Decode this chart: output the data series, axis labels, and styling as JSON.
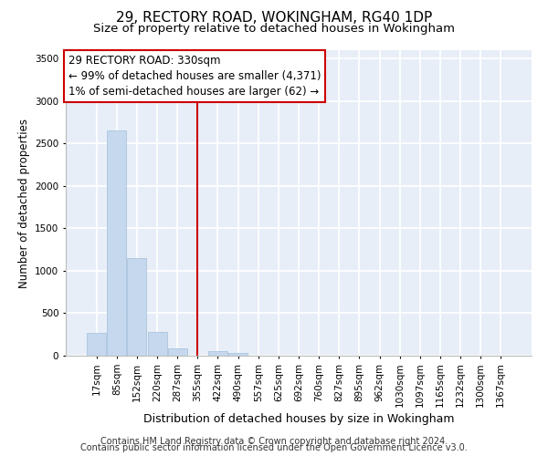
{
  "title1": "29, RECTORY ROAD, WOKINGHAM, RG40 1DP",
  "title2": "Size of property relative to detached houses in Wokingham",
  "xlabel": "Distribution of detached houses by size in Wokingham",
  "ylabel": "Number of detached properties",
  "bar_labels": [
    "17sqm",
    "85sqm",
    "152sqm",
    "220sqm",
    "287sqm",
    "355sqm",
    "422sqm",
    "490sqm",
    "557sqm",
    "625sqm",
    "692sqm",
    "760sqm",
    "827sqm",
    "895sqm",
    "962sqm",
    "1030sqm",
    "1097sqm",
    "1165sqm",
    "1232sqm",
    "1300sqm",
    "1367sqm"
  ],
  "bar_values": [
    270,
    2650,
    1150,
    280,
    90,
    0,
    55,
    35,
    0,
    0,
    0,
    0,
    0,
    0,
    0,
    0,
    0,
    0,
    0,
    0,
    0
  ],
  "bar_color": "#c5d8ed",
  "bar_edgecolor": "#a0bfda",
  "annotation_text": "29 RECTORY ROAD: 330sqm\n← 99% of detached houses are smaller (4,371)\n1% of semi-detached houses are larger (62) →",
  "vline_x_index": 5.0,
  "vline_color": "#cc0000",
  "annotation_box_edgecolor": "#cc0000",
  "ylim": [
    0,
    3600
  ],
  "yticks": [
    0,
    500,
    1000,
    1500,
    2000,
    2500,
    3000,
    3500
  ],
  "background_color": "#e8eef8",
  "grid_color": "#ffffff",
  "footer1": "Contains HM Land Registry data © Crown copyright and database right 2024.",
  "footer2": "Contains public sector information licensed under the Open Government Licence v3.0.",
  "title1_fontsize": 11,
  "title2_fontsize": 9.5,
  "xlabel_fontsize": 9,
  "ylabel_fontsize": 8.5,
  "tick_fontsize": 7.5,
  "annotation_fontsize": 8.5,
  "footer_fontsize": 7
}
